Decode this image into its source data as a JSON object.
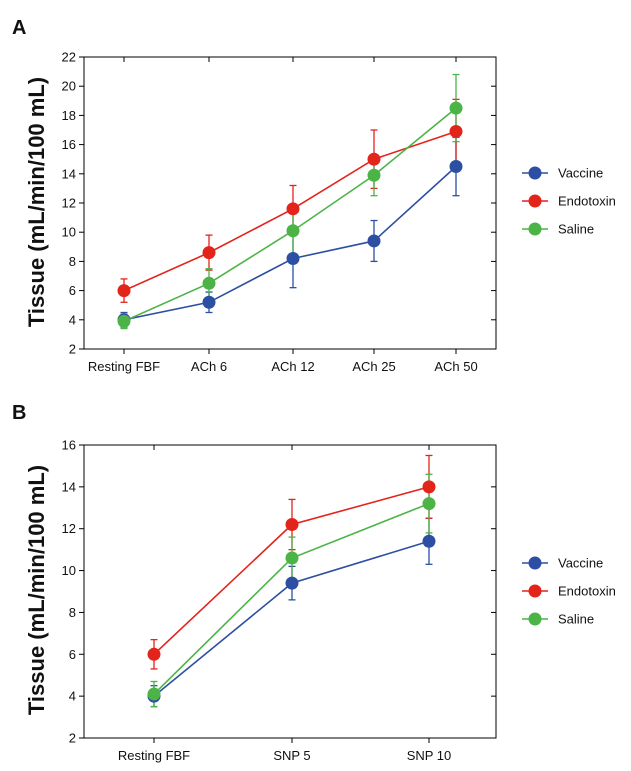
{
  "chart_data": [
    {
      "type": "line",
      "panel": "A",
      "ylabel": "Tissue (mL/min/100 mL)",
      "xlabel": "",
      "categories": [
        "Resting FBF",
        "ACh 6",
        "ACh 12",
        "ACh 25",
        "ACh 50"
      ],
      "ylim": [
        2,
        22
      ],
      "yticks": [
        2,
        4,
        6,
        8,
        10,
        12,
        14,
        16,
        18,
        20,
        22
      ],
      "grid": false,
      "legend_position": "right",
      "series": [
        {
          "name": "Vaccine",
          "color": "#2d4fa3",
          "values": [
            4.0,
            5.2,
            8.2,
            9.4,
            14.5
          ],
          "error": [
            0.5,
            0.7,
            2.0,
            1.4,
            2.0
          ]
        },
        {
          "name": "Endotoxin",
          "color": "#e3241b",
          "values": [
            6.0,
            8.6,
            11.6,
            15.0,
            16.9
          ],
          "error": [
            0.8,
            1.2,
            1.6,
            2.0,
            2.2
          ]
        },
        {
          "name": "Saline",
          "color": "#4cb447",
          "values": [
            3.9,
            6.5,
            10.1,
            13.9,
            18.5
          ],
          "error": [
            0.5,
            1.0,
            1.6,
            1.4,
            2.3
          ]
        }
      ]
    },
    {
      "type": "line",
      "panel": "B",
      "ylabel": "Tissue (mL/min/100 mL)",
      "xlabel": "",
      "categories": [
        "Resting FBF",
        "SNP 5",
        "SNP 10"
      ],
      "ylim": [
        2,
        16
      ],
      "yticks": [
        2,
        4,
        6,
        8,
        10,
        12,
        14,
        16
      ],
      "grid": false,
      "legend_position": "right",
      "series": [
        {
          "name": "Vaccine",
          "color": "#2d4fa3",
          "values": [
            4.0,
            9.4,
            11.4
          ],
          "error": [
            0.5,
            0.8,
            1.1
          ]
        },
        {
          "name": "Endotoxin",
          "color": "#e3241b",
          "values": [
            6.0,
            12.2,
            14.0
          ],
          "error": [
            0.7,
            1.2,
            1.5
          ]
        },
        {
          "name": "Saline",
          "color": "#4cb447",
          "values": [
            4.1,
            10.6,
            13.2
          ],
          "error": [
            0.6,
            1.0,
            1.4
          ]
        }
      ]
    }
  ]
}
